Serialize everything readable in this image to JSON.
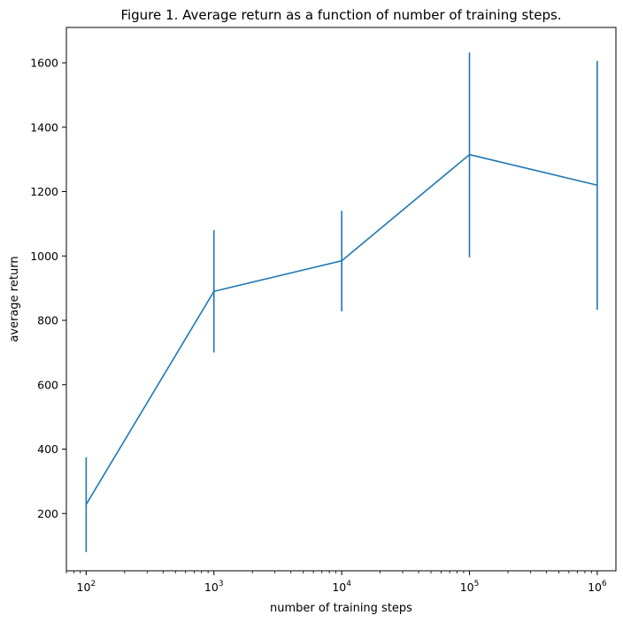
{
  "chart_data": {
    "type": "line",
    "title": "Figure 1. Average return as a function of number of training steps.",
    "xlabel": "number of training steps",
    "ylabel": "average return",
    "xscale": "log",
    "xlim": [
      70,
      1400000
    ],
    "ylim": [
      22,
      1710
    ],
    "grid": false,
    "x_ticks": [
      {
        "value": 100,
        "base": "10",
        "exp": "2"
      },
      {
        "value": 1000,
        "base": "10",
        "exp": "3"
      },
      {
        "value": 10000,
        "base": "10",
        "exp": "4"
      },
      {
        "value": 100000,
        "base": "10",
        "exp": "5"
      },
      {
        "value": 1000000,
        "base": "10",
        "exp": "6"
      }
    ],
    "y_ticks": [
      200,
      400,
      600,
      800,
      1000,
      1200,
      1400,
      1600
    ],
    "series": [
      {
        "color": "#1f77b4",
        "x": [
          100,
          1000,
          10000,
          100000,
          1000000
        ],
        "values": [
          228,
          890,
          985,
          1315,
          1220
        ],
        "error_low": [
          80,
          700,
          828,
          996,
          833
        ],
        "error_high": [
          375,
          1080,
          1140,
          1632,
          1606
        ]
      }
    ]
  }
}
